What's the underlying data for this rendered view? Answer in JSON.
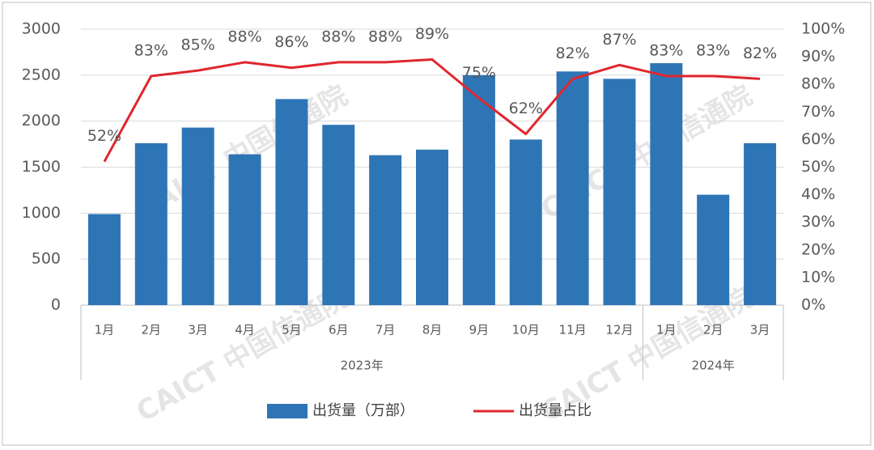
{
  "chart_data": {
    "type": "bar_line",
    "category_groups": [
      {
        "name": "2023年",
        "categories": [
          "1月",
          "2月",
          "3月",
          "4月",
          "5月",
          "6月",
          "7月",
          "8月",
          "9月",
          "10月",
          "11月",
          "12月"
        ]
      },
      {
        "name": "2024年",
        "categories": [
          "1月",
          "2月",
          "3月"
        ]
      }
    ],
    "series": [
      {
        "name": "出货量（万部）",
        "type": "bar",
        "color": "#2e75b6",
        "axis": "y",
        "values": [
          990,
          1760,
          1930,
          1640,
          2240,
          1960,
          1630,
          1690,
          2500,
          1800,
          2540,
          2460,
          2630,
          1200,
          1760
        ]
      },
      {
        "name": "出货量占比",
        "type": "line",
        "color": "#e0262f",
        "axis": "y2",
        "values": [
          52,
          83,
          85,
          88,
          86,
          88,
          88,
          89,
          75,
          62,
          82,
          87,
          83,
          83,
          82
        ],
        "value_labels": [
          "52%",
          "83%",
          "85%",
          "88%",
          "86%",
          "88%",
          "88%",
          "89%",
          "75%",
          "62%",
          "82%",
          "87%",
          "83%",
          "83%",
          "82%"
        ]
      }
    ],
    "ylim": [
      0,
      3000
    ],
    "yticks": [
      0,
      500,
      1000,
      1500,
      2000,
      2500,
      3000
    ],
    "y2lim": [
      0,
      100
    ],
    "y2ticks": [
      {
        "value": 0,
        "label": "0%"
      },
      {
        "value": 10,
        "label": "10%"
      },
      {
        "value": 20,
        "label": "20%"
      },
      {
        "value": 30,
        "label": "30%"
      },
      {
        "value": 40,
        "label": "40%"
      },
      {
        "value": 50,
        "label": "50%"
      },
      {
        "value": 60,
        "label": "60%"
      },
      {
        "value": 70,
        "label": "70%"
      },
      {
        "value": 80,
        "label": "80%"
      },
      {
        "value": 90,
        "label": "90%"
      },
      {
        "value": 100,
        "label": "100%"
      }
    ],
    "grid": true,
    "legend": "bottom",
    "watermark": "CAICT 中国信通院"
  }
}
